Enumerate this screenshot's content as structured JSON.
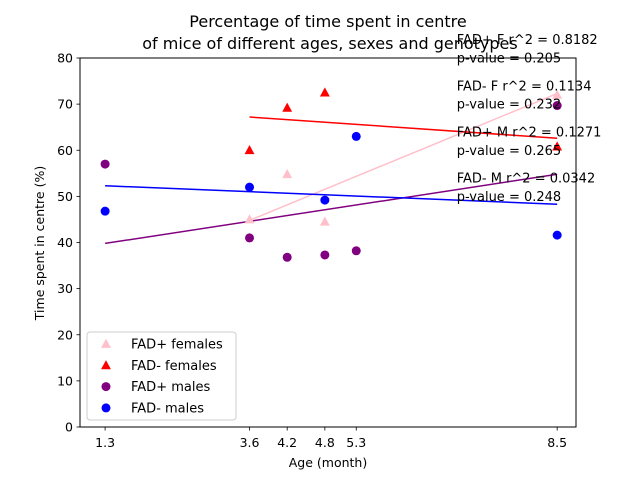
{
  "chart_data": {
    "type": "scatter",
    "title_line1": "Percentage of time spent in centre",
    "title_line2": "of mice of different ages, sexes and genotypes",
    "xlabel": "Age (month)",
    "ylabel": "Time spent in centre (%)",
    "xlim": [
      0.9,
      8.8
    ],
    "ylim": [
      0,
      80
    ],
    "x_ticks": [
      1.3,
      3.6,
      4.2,
      4.8,
      5.3,
      8.5
    ],
    "x_tick_labels": [
      "1.3",
      "3.6",
      "4.2",
      "4.8",
      "5.3",
      "8.5"
    ],
    "y_ticks": [
      0,
      10,
      20,
      30,
      40,
      50,
      60,
      70,
      80
    ],
    "grid": false,
    "legend_position": "lower-left",
    "series": [
      {
        "name": "FAD+ females",
        "color": "#ffc0cb",
        "marker": "triangle",
        "points": [
          [
            3.6,
            45
          ],
          [
            4.2,
            54.8
          ],
          [
            4.8,
            44.5
          ],
          [
            8.5,
            72
          ]
        ],
        "fit": [
          [
            3.6,
            44.8
          ],
          [
            8.5,
            72.3
          ]
        ]
      },
      {
        "name": "FAD- females",
        "color": "#ff0000",
        "marker": "triangle",
        "points": [
          [
            3.6,
            60
          ],
          [
            4.2,
            69.2
          ],
          [
            4.8,
            72.5
          ],
          [
            8.5,
            60.8
          ]
        ],
        "fit": [
          [
            3.6,
            67.2
          ],
          [
            8.5,
            62.6
          ]
        ]
      },
      {
        "name": "FAD+ males",
        "color": "#800080",
        "marker": "circle",
        "points": [
          [
            1.3,
            57
          ],
          [
            3.6,
            41
          ],
          [
            4.2,
            36.8
          ],
          [
            4.8,
            37.3
          ],
          [
            5.3,
            38.2
          ],
          [
            8.5,
            69.7
          ]
        ],
        "fit": [
          [
            1.3,
            39.8
          ],
          [
            8.5,
            54.8
          ]
        ]
      },
      {
        "name": "FAD- males",
        "color": "#0000ff",
        "marker": "circle",
        "points": [
          [
            1.3,
            46.8
          ],
          [
            3.6,
            52
          ],
          [
            4.8,
            49.2
          ],
          [
            5.3,
            63
          ],
          [
            8.5,
            41.6
          ]
        ],
        "fit": [
          [
            1.3,
            52.3
          ],
          [
            8.5,
            48.3
          ]
        ]
      }
    ],
    "annotations": [
      {
        "text": "FAD+ F r^2 = 0.8182",
        "x": 6.9,
        "y": 83
      },
      {
        "text": "p-value = 0.205",
        "x": 6.9,
        "y": 79
      },
      {
        "text": "FAD- F r^2 = 0.1134",
        "x": 6.9,
        "y": 73
      },
      {
        "text": "p-value = 0.232",
        "x": 6.9,
        "y": 69
      },
      {
        "text": "FAD+ M r^2 = 0.1271",
        "x": 6.9,
        "y": 63
      },
      {
        "text": "p-value = 0.265",
        "x": 6.9,
        "y": 59
      },
      {
        "text": "FAD- M r^2 = 0.0342",
        "x": 6.9,
        "y": 53
      },
      {
        "text": "p-value = 0.248",
        "x": 6.9,
        "y": 49
      }
    ]
  }
}
